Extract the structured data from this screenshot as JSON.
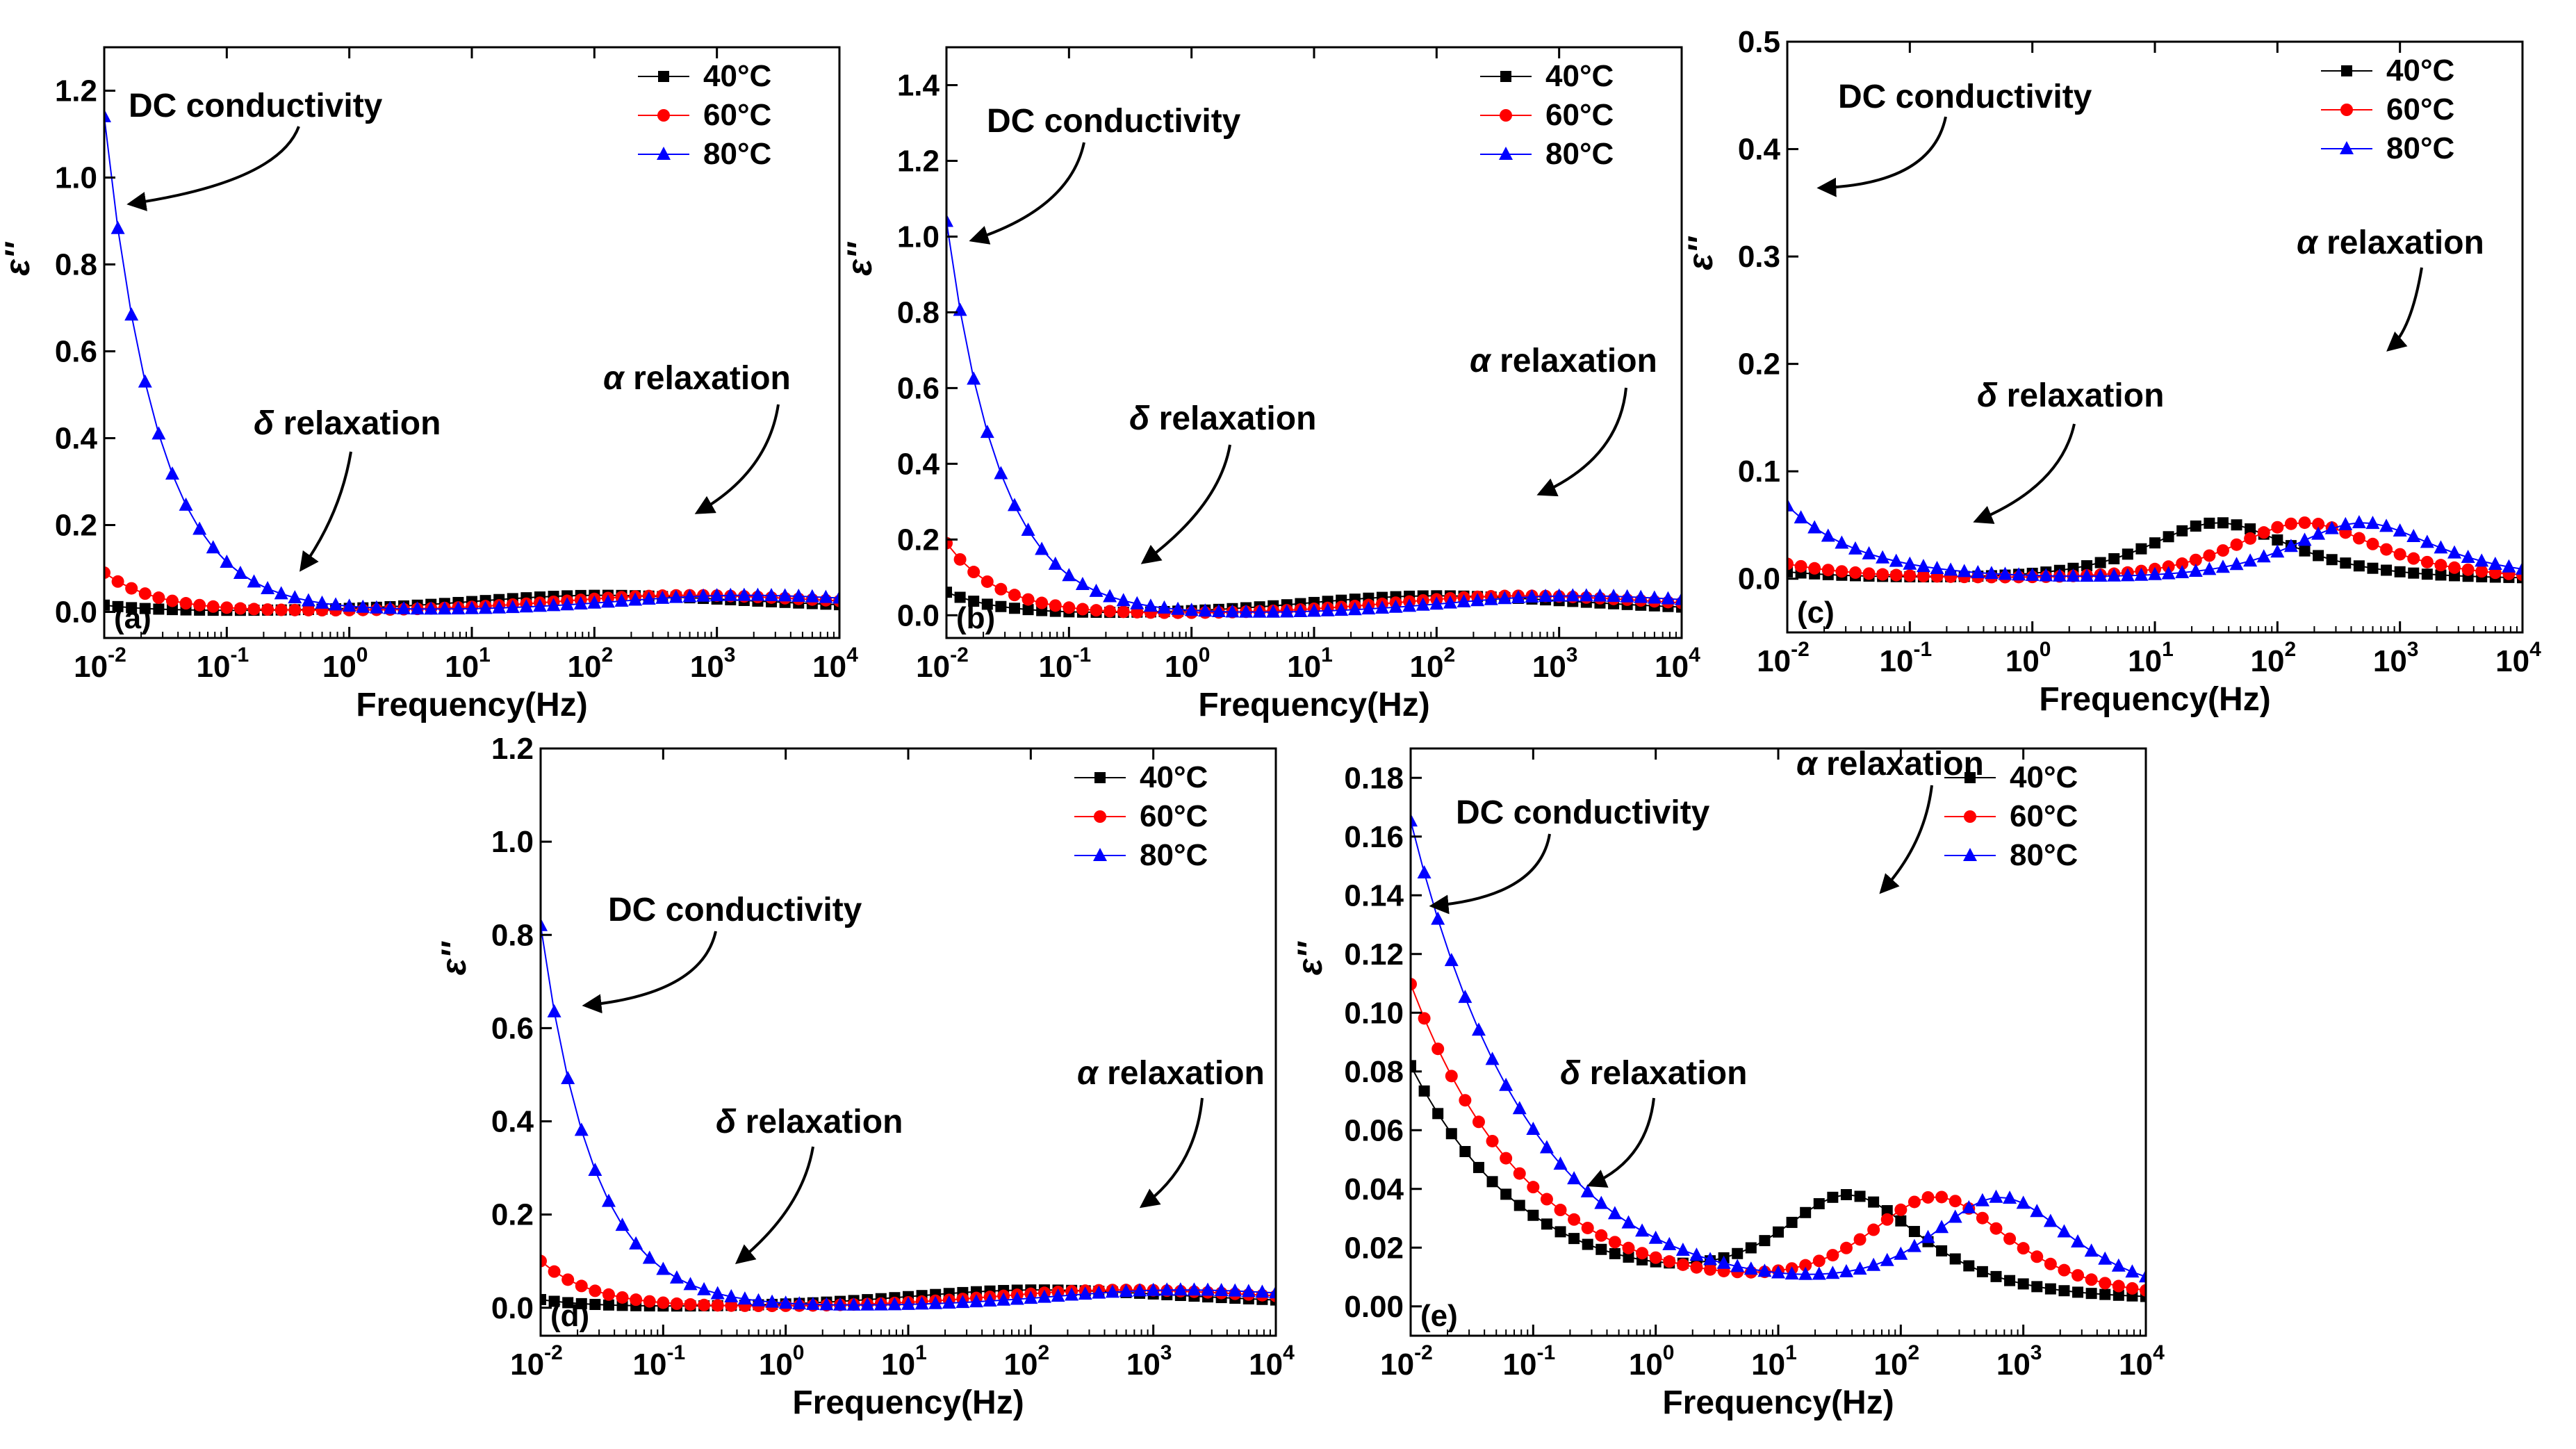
{
  "figure": {
    "series_colors": {
      "40°C": "#000000",
      "60°C": "#ff0000",
      "80°C": "#0000ff"
    },
    "series_markers": {
      "40°C": "square",
      "60°C": "circle",
      "80°C": "triangle"
    }
  },
  "chart_data": [
    {
      "type": "line",
      "panel_label": "(a)",
      "xscale": "log",
      "xlabel": "Frequency(Hz)",
      "ylabel": "ε''",
      "xlim_exp": [
        -2,
        4
      ],
      "ylim": [
        -0.06,
        1.3
      ],
      "yticks": [
        0.0,
        0.2,
        0.4,
        0.6,
        0.8,
        1.0,
        1.2
      ],
      "ytick_decimals": 1,
      "legend": [
        "40°C",
        "60°C",
        "80°C"
      ],
      "legend_position": "top-right",
      "annotations": [
        {
          "text": "DC conductivity",
          "points_to": [
            0.014,
            0.93
          ]
        },
        {
          "text": "δ relaxation",
          "points_to": [
            0.35,
            0.09
          ]
        },
        {
          "text": "α relaxation",
          "points_to": [
            600,
            0.22
          ]
        }
      ],
      "series": [
        {
          "name": "40°C",
          "dc": 0.00015,
          "eps": 0.07,
          "f_peak": 40,
          "a": 0.6,
          "b": 0.5,
          "floor": 0.0,
          "dc_exp": 1.0
        },
        {
          "name": "60°C",
          "dc": 0.0009,
          "eps": 0.07,
          "f_peak": 200,
          "a": 0.6,
          "b": 0.5,
          "floor": 0.0,
          "dc_exp": 1.0
        },
        {
          "name": "80°C",
          "dc": 0.0114,
          "eps": 0.07,
          "f_peak": 600,
          "a": 0.6,
          "b": 0.5,
          "floor": 0.0,
          "dc_exp": 1.0
        }
      ]
    },
    {
      "type": "line",
      "panel_label": "(b)",
      "xscale": "log",
      "xlabel": "Frequency(Hz)",
      "ylabel": "ε''",
      "xlim_exp": [
        -2,
        4
      ],
      "ylim": [
        -0.06,
        1.5
      ],
      "yticks": [
        0.0,
        0.2,
        0.4,
        0.6,
        0.8,
        1.0,
        1.2,
        1.4
      ],
      "ytick_decimals": 1,
      "legend": [
        "40°C",
        "60°C",
        "80°C"
      ],
      "legend_position": "top-right",
      "annotations": [
        {
          "text": "DC conductivity",
          "points_to": [
            0.014,
            0.98
          ]
        },
        {
          "text": "δ relaxation",
          "points_to": [
            0.35,
            0.13
          ]
        },
        {
          "text": "α relaxation",
          "points_to": [
            600,
            0.31
          ]
        }
      ],
      "series": [
        {
          "name": "40°C",
          "dc": 0.0006,
          "eps": 0.094,
          "f_peak": 35,
          "a": 0.6,
          "b": 0.5,
          "floor": 0.0,
          "dc_exp": 1.0
        },
        {
          "name": "60°C",
          "dc": 0.0019,
          "eps": 0.094,
          "f_peak": 170,
          "a": 0.6,
          "b": 0.5,
          "floor": 0.0,
          "dc_exp": 1.0
        },
        {
          "name": "80°C",
          "dc": 0.0104,
          "eps": 0.094,
          "f_peak": 500,
          "a": 0.6,
          "b": 0.5,
          "floor": 0.0,
          "dc_exp": 1.0
        }
      ]
    },
    {
      "type": "line",
      "panel_label": "(c)",
      "xscale": "log",
      "xlabel": "Frequency(Hz)",
      "ylabel": "ε''",
      "xlim_exp": [
        -2,
        4
      ],
      "ylim": [
        -0.05,
        0.5
      ],
      "yticks": [
        0.0,
        0.1,
        0.2,
        0.3,
        0.4,
        0.5
      ],
      "ytick_decimals": 1,
      "legend": [
        "40°C",
        "60°C",
        "80°C"
      ],
      "legend_position": "top-right",
      "annotations": [
        {
          "text": "DC conductivity",
          "points_to": [
            0.016,
            0.36
          ]
        },
        {
          "text": "δ relaxation",
          "points_to": [
            0.3,
            0.05
          ]
        },
        {
          "text": "α relaxation",
          "points_to": [
            700,
            0.21
          ]
        }
      ],
      "series": [
        {
          "name": "40°C",
          "dc": 0.00025,
          "eps": 0.104,
          "f_peak": 30,
          "a": 0.92,
          "b": 0.9,
          "floor": 0.0,
          "dc_exp": 0.7
        },
        {
          "name": "60°C",
          "dc": 0.00055,
          "eps": 0.104,
          "f_peak": 150,
          "a": 0.92,
          "b": 0.9,
          "floor": 0.0,
          "dc_exp": 0.7
        },
        {
          "name": "80°C",
          "dc": 0.0027,
          "eps": 0.104,
          "f_peak": 450,
          "a": 0.92,
          "b": 0.9,
          "floor": 0.0,
          "dc_exp": 0.7
        }
      ]
    },
    {
      "type": "line",
      "panel_label": "(d)",
      "xscale": "log",
      "xlabel": "Frequency(Hz)",
      "ylabel": "ε''",
      "xlim_exp": [
        -2,
        4
      ],
      "ylim": [
        -0.06,
        1.2
      ],
      "yticks": [
        0.0,
        0.2,
        0.4,
        0.6,
        0.8,
        1.0,
        1.2
      ],
      "ytick_decimals": 1,
      "legend": [
        "40°C",
        "60°C",
        "80°C"
      ],
      "legend_position": "top-right",
      "annotations": [
        {
          "text": "DC conductivity",
          "points_to": [
            0.02,
            0.64
          ]
        },
        {
          "text": "δ relaxation",
          "points_to": [
            0.35,
            0.09
          ]
        },
        {
          "text": "α relaxation",
          "points_to": [
            700,
            0.21
          ]
        }
      ],
      "series": [
        {
          "name": "40°C",
          "dc": 0.00017,
          "eps": 0.07,
          "f_peak": 40,
          "a": 0.6,
          "b": 0.5,
          "floor": 0.0,
          "dc_exp": 1.0
        },
        {
          "name": "60°C",
          "dc": 0.001,
          "eps": 0.07,
          "f_peak": 200,
          "a": 0.6,
          "b": 0.5,
          "floor": 0.0,
          "dc_exp": 1.0
        },
        {
          "name": "80°C",
          "dc": 0.0082,
          "eps": 0.07,
          "f_peak": 600,
          "a": 0.6,
          "b": 0.5,
          "floor": 0.0,
          "dc_exp": 1.0
        }
      ]
    },
    {
      "type": "line",
      "panel_label": "(e)",
      "xscale": "log",
      "xlabel": "Frequency(Hz)",
      "ylabel": "ε''",
      "xlim_exp": [
        -2,
        4
      ],
      "ylim": [
        -0.01,
        0.19
      ],
      "yticks": [
        0.0,
        0.02,
        0.04,
        0.06,
        0.08,
        0.1,
        0.12,
        0.14,
        0.16,
        0.18
      ],
      "ytick_decimals": 2,
      "legend": [
        "40°C",
        "60°C",
        "80°C"
      ],
      "legend_position": "top-right",
      "annotations": [
        {
          "text": "DC conductivity",
          "points_to": [
            0.013,
            0.135
          ]
        },
        {
          "text": "δ relaxation",
          "points_to": [
            0.25,
            0.04
          ]
        },
        {
          "text": "α relaxation",
          "points_to": [
            60,
            0.14
          ]
        }
      ],
      "series": [
        {
          "name": "40°C",
          "dc": 0.01,
          "eps": 0.067,
          "f_peak": 35,
          "a": 0.92,
          "b": 0.9,
          "floor": 0.0025,
          "dc_exp": 0.45
        },
        {
          "name": "60°C",
          "dc": 0.0135,
          "eps": 0.067,
          "f_peak": 180,
          "a": 0.92,
          "b": 0.9,
          "floor": 0.0025,
          "dc_exp": 0.45
        },
        {
          "name": "80°C",
          "dc": 0.0205,
          "eps": 0.067,
          "f_peak": 600,
          "a": 0.92,
          "b": 0.9,
          "floor": 0.0025,
          "dc_exp": 0.45
        }
      ]
    }
  ]
}
